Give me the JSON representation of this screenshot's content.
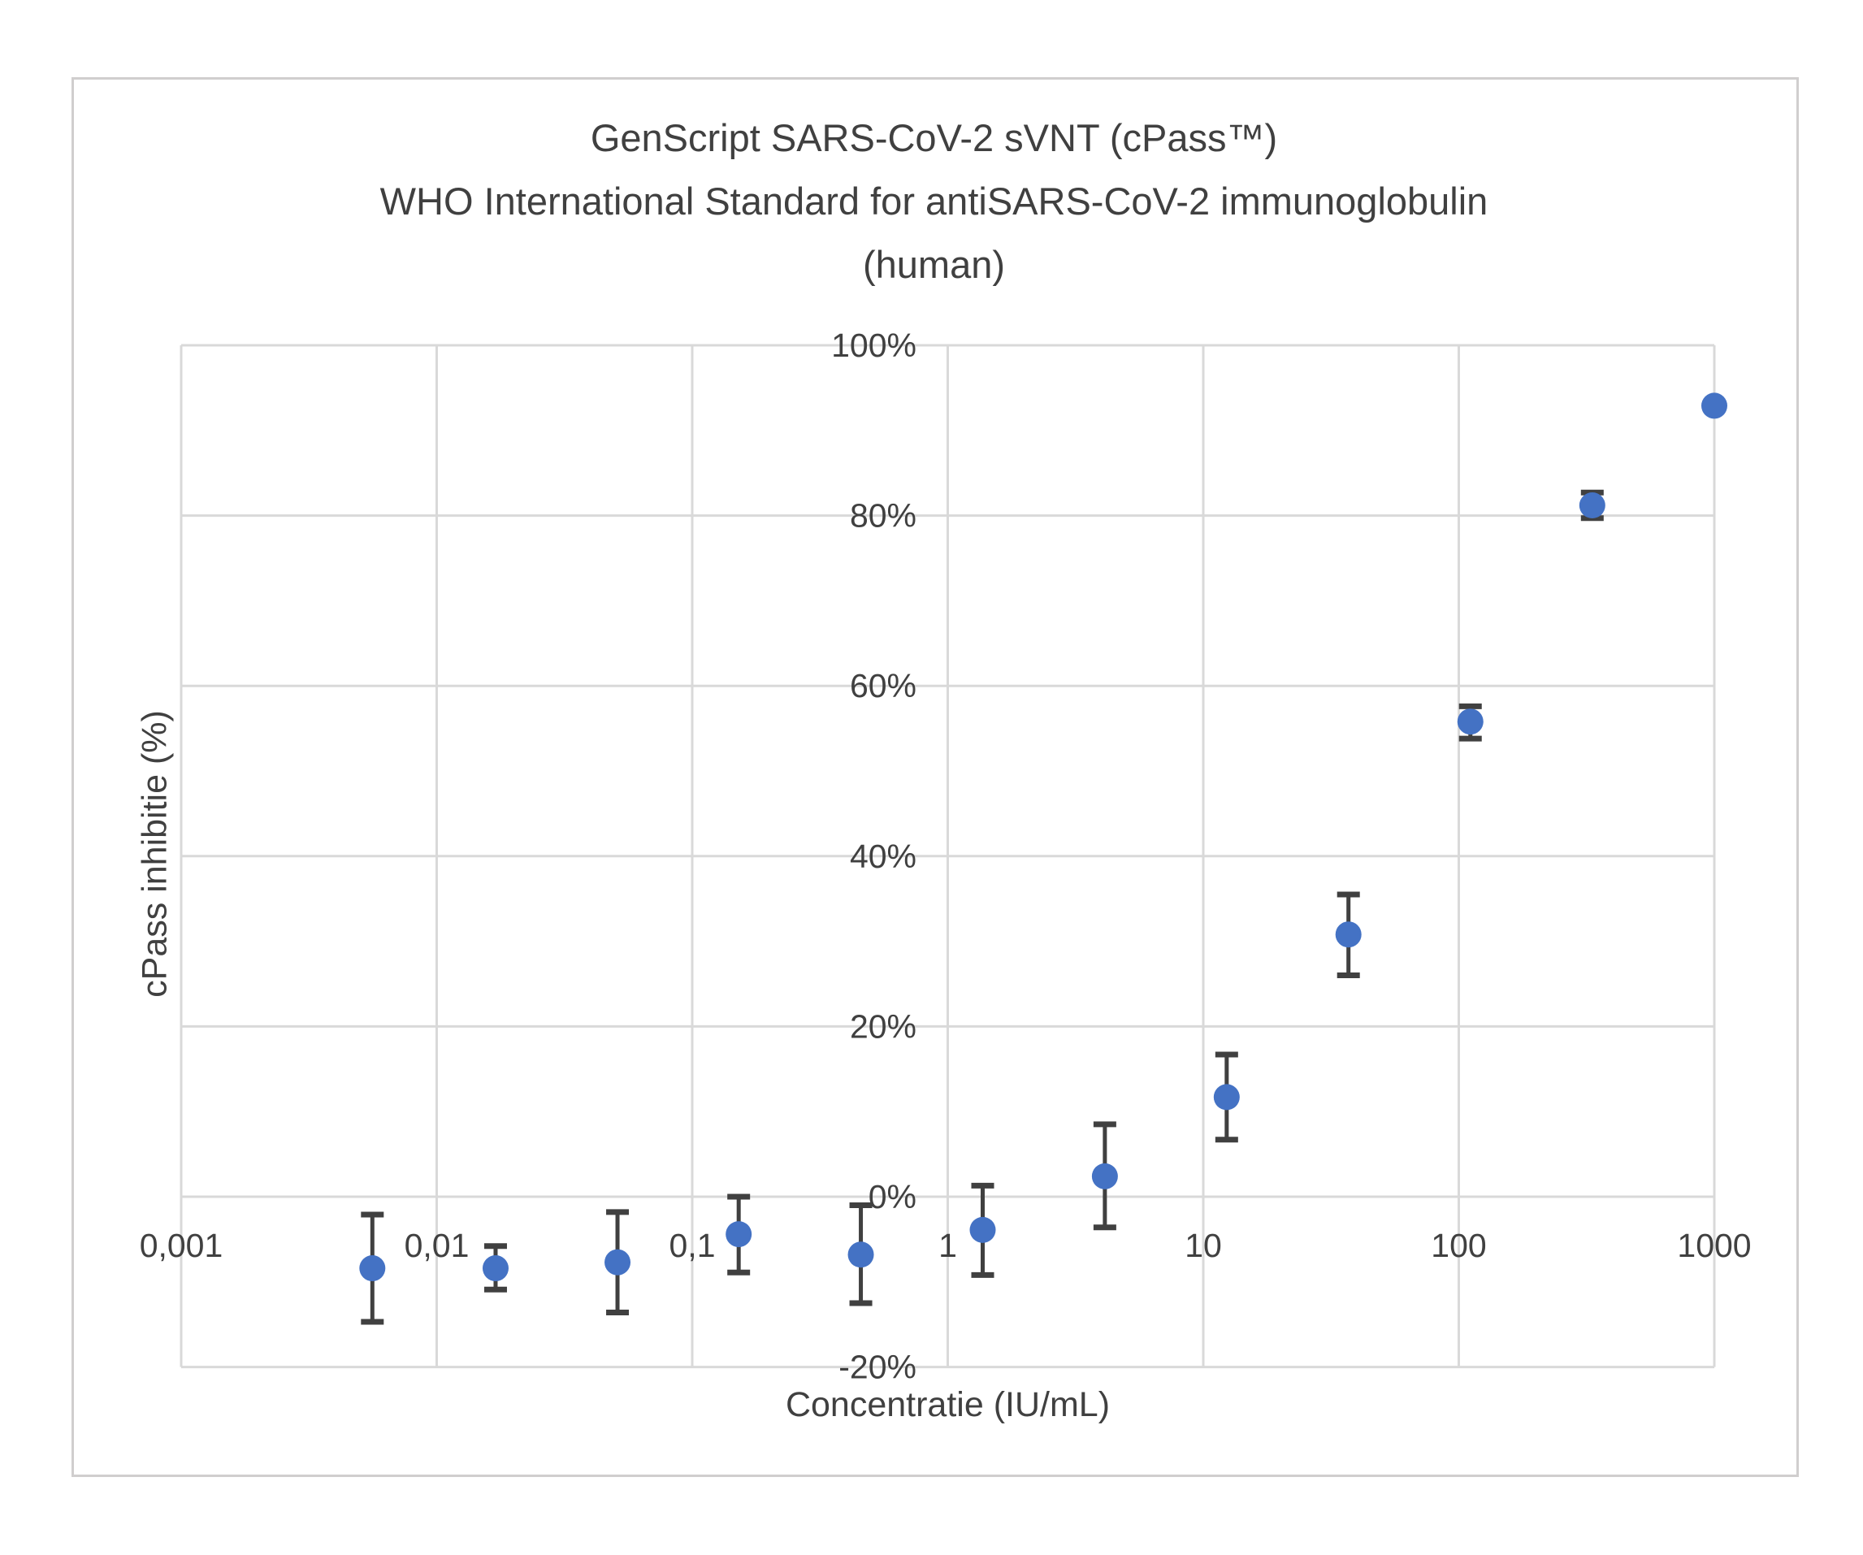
{
  "chart": {
    "title_line_1": "GenScript SARS-CoV-2 sVNT (cPass™)",
    "title_line_2": "WHO International Standard for antiSARS-CoV-2 immunoglobulin",
    "title_line_3": "(human)",
    "x_axis_title": "Concentratie (IU/mL)",
    "y_axis_title": "cPass inhibitie (%)"
  },
  "colors": {
    "text": "#404040",
    "tick_label": "#404040",
    "gridline": "#D9D9D9",
    "frame_border": "#D0CECE",
    "marker": "#4472C4",
    "error_bar": "#404040",
    "background": "#FFFFFF"
  },
  "chart_data": {
    "type": "scatter",
    "title": "GenScript SARS-CoV-2 sVNT (cPass™) WHO International Standard for antiSARS-CoV-2 immunoglobulin (human)",
    "xlabel": "Concentratie (IU/mL)",
    "ylabel": "cPass inhibitie (%)",
    "x_scale": "log10",
    "xlim": [
      0.001,
      1000
    ],
    "ylim_percent": [
      -20,
      100
    ],
    "grid": true,
    "legend_position": "none",
    "x_tick_values": [
      0.001,
      0.01,
      0.1,
      1,
      10,
      100,
      1000
    ],
    "x_tick_labels": [
      "0,001",
      "0,01",
      "0,1",
      "1",
      "10",
      "100",
      "1000"
    ],
    "y_tick_values": [
      100,
      80,
      60,
      40,
      20,
      0,
      -20
    ],
    "y_tick_labels": [
      "100%",
      "80%",
      "60%",
      "40%",
      "20%",
      "0%",
      "-20%"
    ],
    "series": [
      {
        "name": "cPass inhibitie",
        "marker": "circle",
        "error_bars": "vertical",
        "points": [
          {
            "x": 0.0056,
            "y": -8.4,
            "y_hi": -2.1,
            "y_lo": -14.7
          },
          {
            "x": 0.017,
            "y": -8.4,
            "y_hi": -5.8,
            "y_lo": -10.9
          },
          {
            "x": 0.051,
            "y": -7.7,
            "y_hi": -1.8,
            "y_lo": -13.6
          },
          {
            "x": 0.152,
            "y": -4.4,
            "y_hi": 0.0,
            "y_lo": -8.9
          },
          {
            "x": 0.457,
            "y": -6.8,
            "y_hi": -1.0,
            "y_lo": -12.5
          },
          {
            "x": 1.37,
            "y": -3.9,
            "y_hi": 1.3,
            "y_lo": -9.2
          },
          {
            "x": 4.12,
            "y": 2.4,
            "y_hi": 8.5,
            "y_lo": -3.6
          },
          {
            "x": 12.35,
            "y": 11.7,
            "y_hi": 16.7,
            "y_lo": 6.7
          },
          {
            "x": 37,
            "y": 30.8,
            "y_hi": 35.5,
            "y_lo": 26.0
          },
          {
            "x": 111,
            "y": 55.8,
            "y_hi": 57.6,
            "y_lo": 53.8
          },
          {
            "x": 333,
            "y": 81.2,
            "y_hi": 82.7,
            "y_lo": 79.7
          },
          {
            "x": 1000,
            "y": 92.9,
            "y_hi": 92.9,
            "y_lo": 92.9
          }
        ]
      }
    ]
  }
}
